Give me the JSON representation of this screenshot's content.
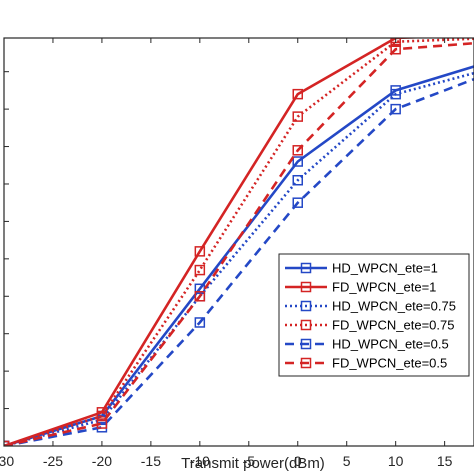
{
  "chart_data": {
    "type": "line",
    "xlabel": "Transmit power(dBm)",
    "ylabel": "",
    "title": "",
    "xlim": [
      -30,
      18
    ],
    "ylim": [
      0,
      1.09
    ],
    "x": [
      -30,
      -20,
      -10,
      0,
      10,
      20
    ],
    "x_ticks": [
      -30,
      -25,
      -20,
      -15,
      -10,
      -5,
      0,
      5,
      10,
      15
    ],
    "x_tick_labels": [
      "-30",
      "-25",
      "-20",
      "-15",
      "-10",
      "-5",
      "0",
      "5",
      "10",
      "15"
    ],
    "y_ticks": [
      0,
      0.1,
      0.2,
      0.3,
      0.4,
      0.5,
      0.6,
      0.7,
      0.8,
      0.9,
      1.0
    ],
    "grid": false,
    "legend_position": "right-center",
    "series": [
      {
        "name": "HD_WPCN_ete=1",
        "color": "#2448c6",
        "dash": "solid",
        "values": [
          0.0,
          0.08,
          0.42,
          0.76,
          0.95,
          1.03
        ]
      },
      {
        "name": "FD_WPCN_ete=1",
        "color": "#d42424",
        "dash": "solid",
        "values": [
          0.0,
          0.09,
          0.52,
          0.94,
          1.09,
          1.1
        ]
      },
      {
        "name": "HD_WPCN_ete=0.75",
        "color": "#2448c6",
        "dash": "dotted",
        "values": [
          0.0,
          0.07,
          0.4,
          0.71,
          0.94,
          1.01
        ]
      },
      {
        "name": "FD_WPCN_ete=0.75",
        "color": "#d42424",
        "dash": "dotted",
        "values": [
          0.0,
          0.08,
          0.47,
          0.88,
          1.08,
          1.09
        ]
      },
      {
        "name": "HD_WPCN_ete=0.5",
        "color": "#2448c6",
        "dash": "dashed",
        "values": [
          0.0,
          0.05,
          0.33,
          0.65,
          0.9,
          1.0
        ]
      },
      {
        "name": "FD_WPCN_ete=0.5",
        "color": "#d42424",
        "dash": "dashed",
        "values": [
          0.0,
          0.06,
          0.4,
          0.79,
          1.06,
          1.08
        ]
      }
    ]
  }
}
